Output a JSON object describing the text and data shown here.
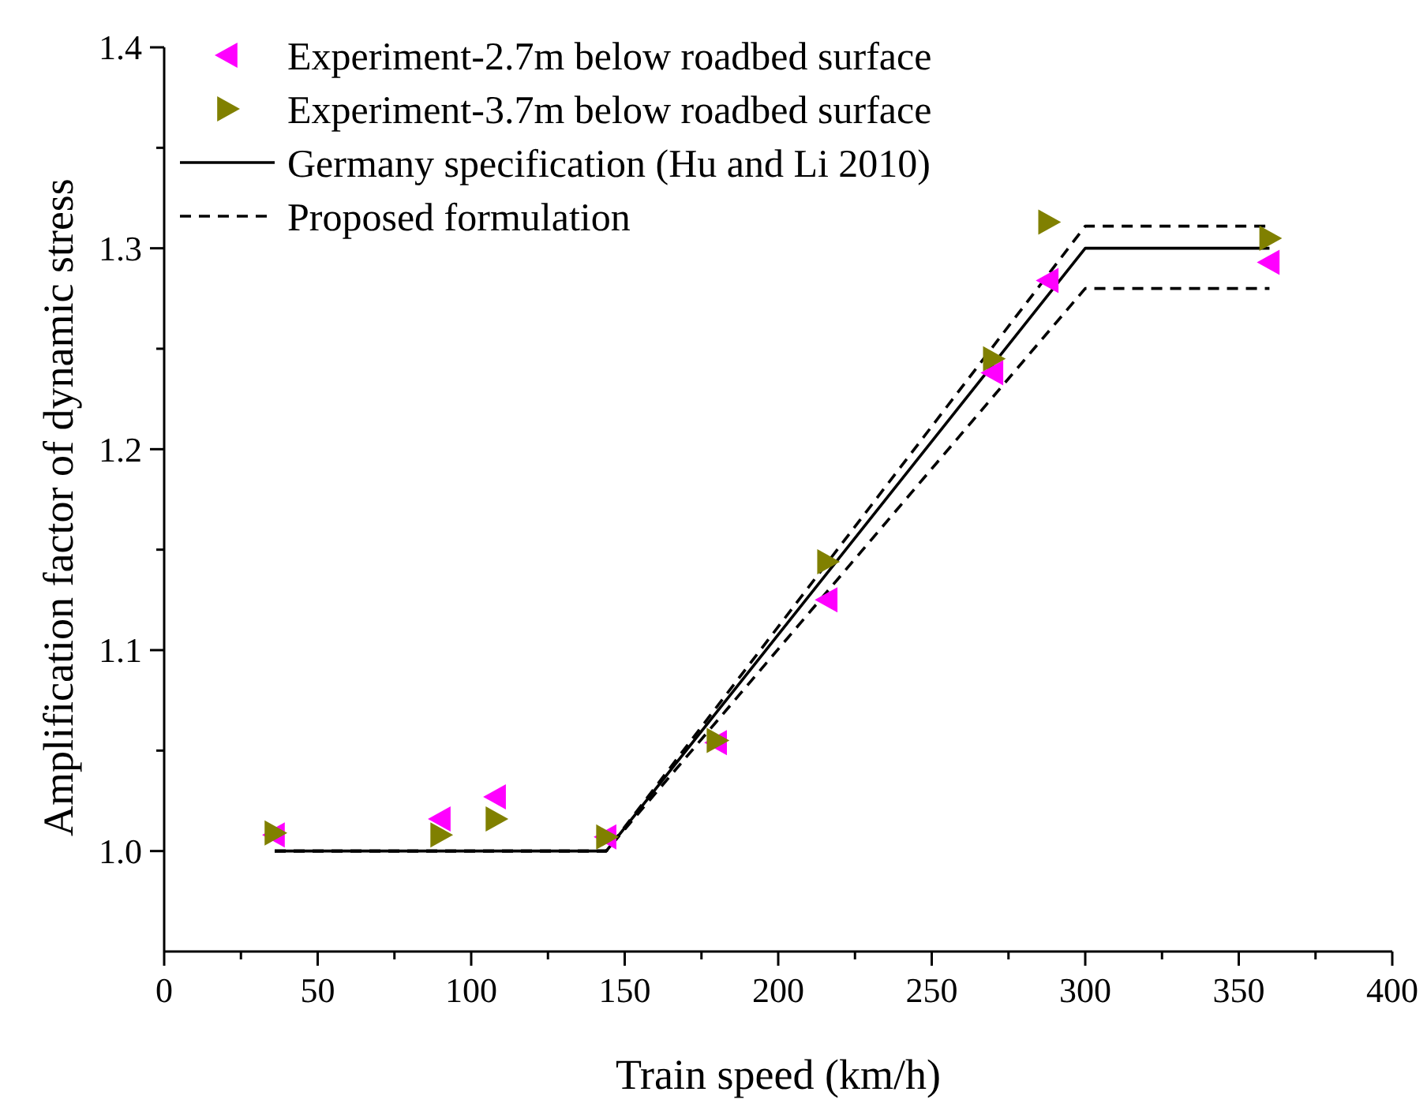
{
  "chart_data": {
    "type": "scatter",
    "xlabel": "Train speed (km/h)",
    "ylabel": "Amplification factor of dynamic stress",
    "xlim": [
      0,
      400
    ],
    "ylim": [
      0.95,
      1.4
    ],
    "xticks": [
      0,
      {
        "value": 25,
        "label": null
      },
      50,
      {
        "value": 75,
        "label": null
      },
      100,
      {
        "value": 125,
        "label": null
      },
      150,
      {
        "value": 175,
        "label": null
      },
      200,
      {
        "value": 225,
        "label": null
      },
      250,
      {
        "value": 275,
        "label": null
      },
      300,
      {
        "value": 325,
        "label": null
      },
      350,
      {
        "value": 375,
        "label": null
      },
      400
    ],
    "yticks": [
      {
        "value": 1.0,
        "label": "1.0"
      },
      {
        "value": 1.05,
        "label": null
      },
      1.1,
      {
        "value": 1.15,
        "label": null
      },
      1.2,
      {
        "value": 1.25,
        "label": null
      },
      1.3,
      {
        "value": 1.35,
        "label": null
      },
      1.4
    ],
    "legend": "top left",
    "grid": false,
    "series": [
      {
        "name": "Experiment-2.7m below roadbed surface",
        "marker": "triangle-left",
        "color": "#ff00ff",
        "x": [
          36,
          90,
          108,
          144,
          180,
          216,
          270,
          288,
          360
        ],
        "values": [
          1.008,
          1.016,
          1.027,
          1.007,
          1.054,
          1.125,
          1.238,
          1.284,
          1.293
        ]
      },
      {
        "name": "Experiment-3.7m below roadbed surface",
        "marker": "triangle-right",
        "color": "#808000",
        "x": [
          36,
          90,
          108,
          144,
          180,
          216,
          270,
          288,
          360
        ],
        "values": [
          1.009,
          1.008,
          1.016,
          1.007,
          1.055,
          1.144,
          1.245,
          1.313,
          1.305
        ]
      },
      {
        "name": "Germany specification (Hu and Li 2010)",
        "type": "line",
        "line_style": "solid",
        "color": "#000000",
        "x": [
          36,
          144,
          300,
          360
        ],
        "values": [
          1.0,
          1.0,
          1.3,
          1.3
        ]
      },
      {
        "name": "Proposed formulation",
        "type": "line",
        "line_style": "dashed",
        "color": "#000000",
        "x": [
          36,
          144,
          300,
          360
        ],
        "values": [
          1.0,
          1.0,
          1.311,
          1.311
        ]
      },
      {
        "type": "line",
        "line_style": "dashed",
        "color": "#000000",
        "x": [
          36,
          144,
          300,
          360
        ],
        "values": [
          1.0,
          1.0,
          1.28,
          1.28
        ]
      }
    ]
  }
}
